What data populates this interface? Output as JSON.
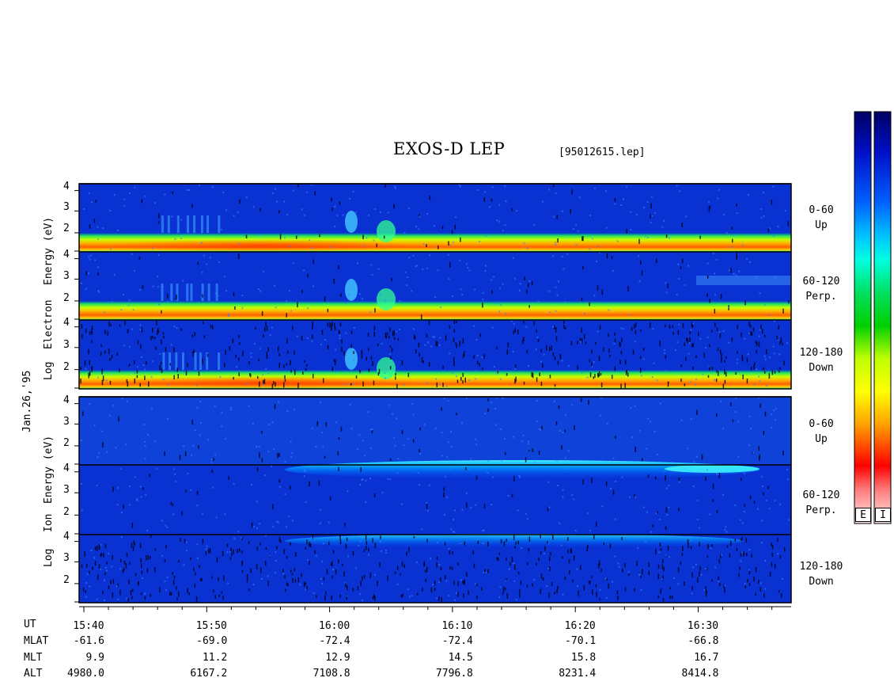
{
  "chart_data": {
    "type": "heatmap",
    "title": "EXOS-D LEP",
    "file_label": "[95012615.lep]",
    "date_label": "Jan.26,'95",
    "x_ticks": [
      "15:40",
      "15:50",
      "16:00",
      "16:10",
      "16:20",
      "16:30"
    ],
    "electron": {
      "ylabel": [
        "Log",
        "Electron",
        "Energy (eV)"
      ],
      "panels": [
        {
          "angle": "0-60",
          "direction": "Up",
          "yticks": [
            "2",
            "3",
            "4"
          ]
        },
        {
          "angle": "60-120",
          "direction": "Perp.",
          "yticks": [
            "2",
            "3",
            "4"
          ]
        },
        {
          "angle": "120-180",
          "direction": "Down",
          "yticks": [
            "2",
            "3",
            "4"
          ]
        }
      ]
    },
    "ion": {
      "ylabel": [
        "Log",
        "Ion",
        "Energy (eV)"
      ],
      "panels": [
        {
          "angle": "0-60",
          "direction": "Up",
          "yticks": [
            "2",
            "3",
            "4"
          ]
        },
        {
          "angle": "60-120",
          "direction": "Perp.",
          "yticks": [
            "2",
            "3",
            "4"
          ]
        },
        {
          "angle": "120-180",
          "direction": "Down",
          "yticks": [
            "2",
            "3",
            "4"
          ]
        }
      ]
    },
    "orbit": {
      "labels": [
        "UT",
        "MLAT",
        "MLT",
        "ALT"
      ],
      "mlat": [
        "-61.6",
        "-69.0",
        "-72.4",
        "-72.4",
        "-70.1",
        "-66.8"
      ],
      "mlt": [
        "9.9",
        "11.2",
        "12.9",
        "14.5",
        "15.8",
        "16.7"
      ],
      "alt": [
        "4980.0",
        "6167.2",
        "7108.8",
        "7796.8",
        "8231.4",
        "8414.8"
      ]
    },
    "colorbars": [
      {
        "label": "E"
      },
      {
        "label": "I"
      }
    ]
  }
}
